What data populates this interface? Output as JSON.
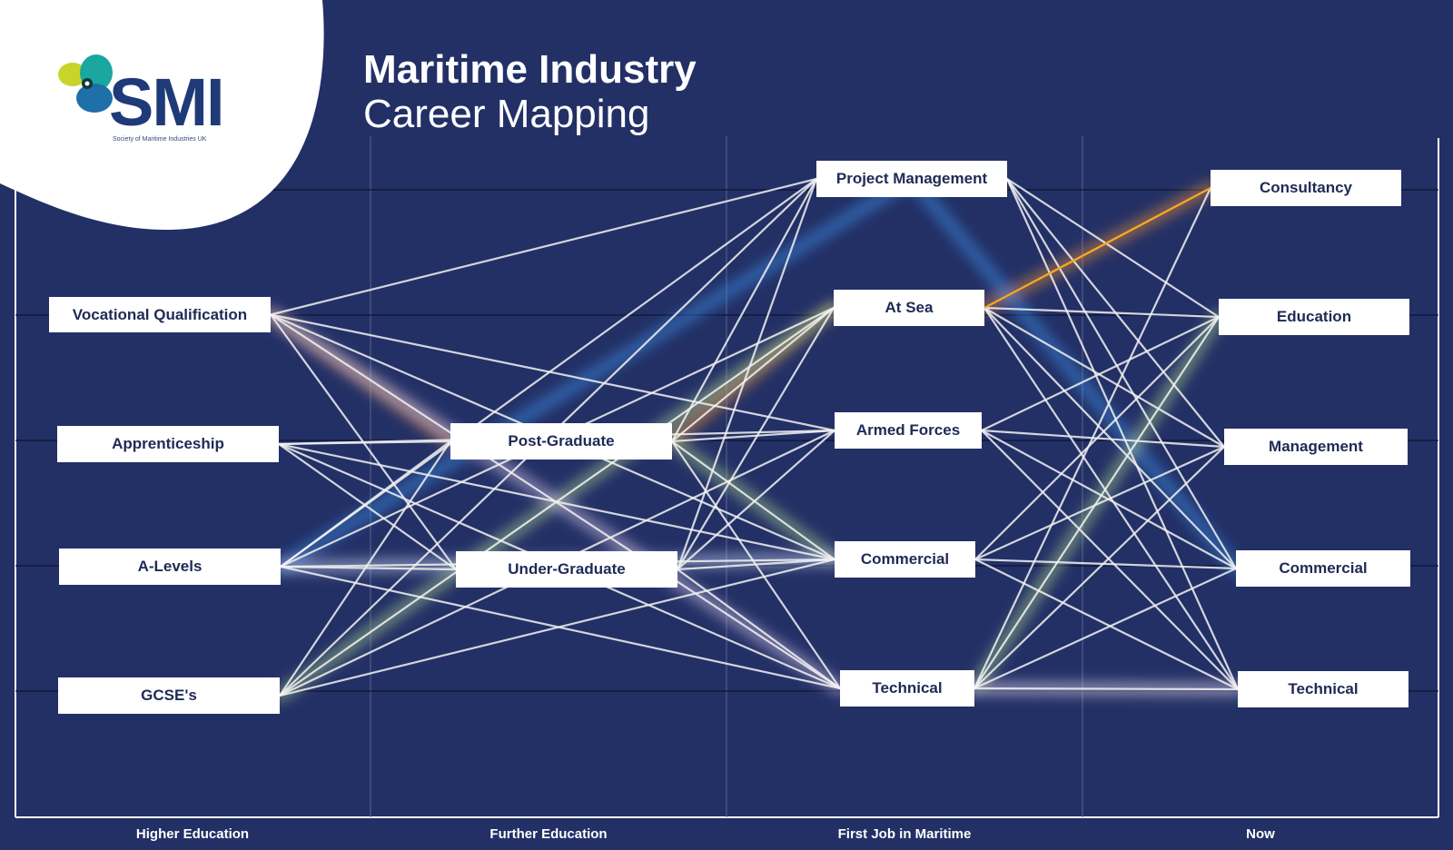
{
  "title": {
    "line1": "Maritime Industry",
    "line2": "Career Mapping"
  },
  "logo": {
    "text": "SMI",
    "subtext": "Society of Maritime Industries UK"
  },
  "stages": [
    "Higher Education",
    "Further Education",
    "First Job in Maritime",
    "Now"
  ],
  "nodes": [
    {
      "id": "voc",
      "label": "Vocational Qualification"
    },
    {
      "id": "app",
      "label": "Apprenticeship"
    },
    {
      "id": "alv",
      "label": "A-Levels"
    },
    {
      "id": "gcse",
      "label": "GCSE's"
    },
    {
      "id": "pg",
      "label": "Post-Graduate"
    },
    {
      "id": "ug",
      "label": "Under-Graduate"
    },
    {
      "id": "pm",
      "label": "Project Management"
    },
    {
      "id": "sea",
      "label": "At Sea"
    },
    {
      "id": "af",
      "label": "Armed Forces"
    },
    {
      "id": "com1",
      "label": "Commercial"
    },
    {
      "id": "tec1",
      "label": "Technical"
    },
    {
      "id": "cons",
      "label": "Consultancy"
    },
    {
      "id": "edu",
      "label": "Education"
    },
    {
      "id": "mgmt",
      "label": "Management"
    },
    {
      "id": "com2",
      "label": "Commercial"
    },
    {
      "id": "tec2",
      "label": "Technical"
    }
  ],
  "colors": {
    "background": "#233066",
    "line": "#f2f2f2",
    "highlight": "#f5a623",
    "glow_blue": "#3a8ee6",
    "glow_orange": "#e8923a",
    "glow_green": "#a8d08d"
  }
}
